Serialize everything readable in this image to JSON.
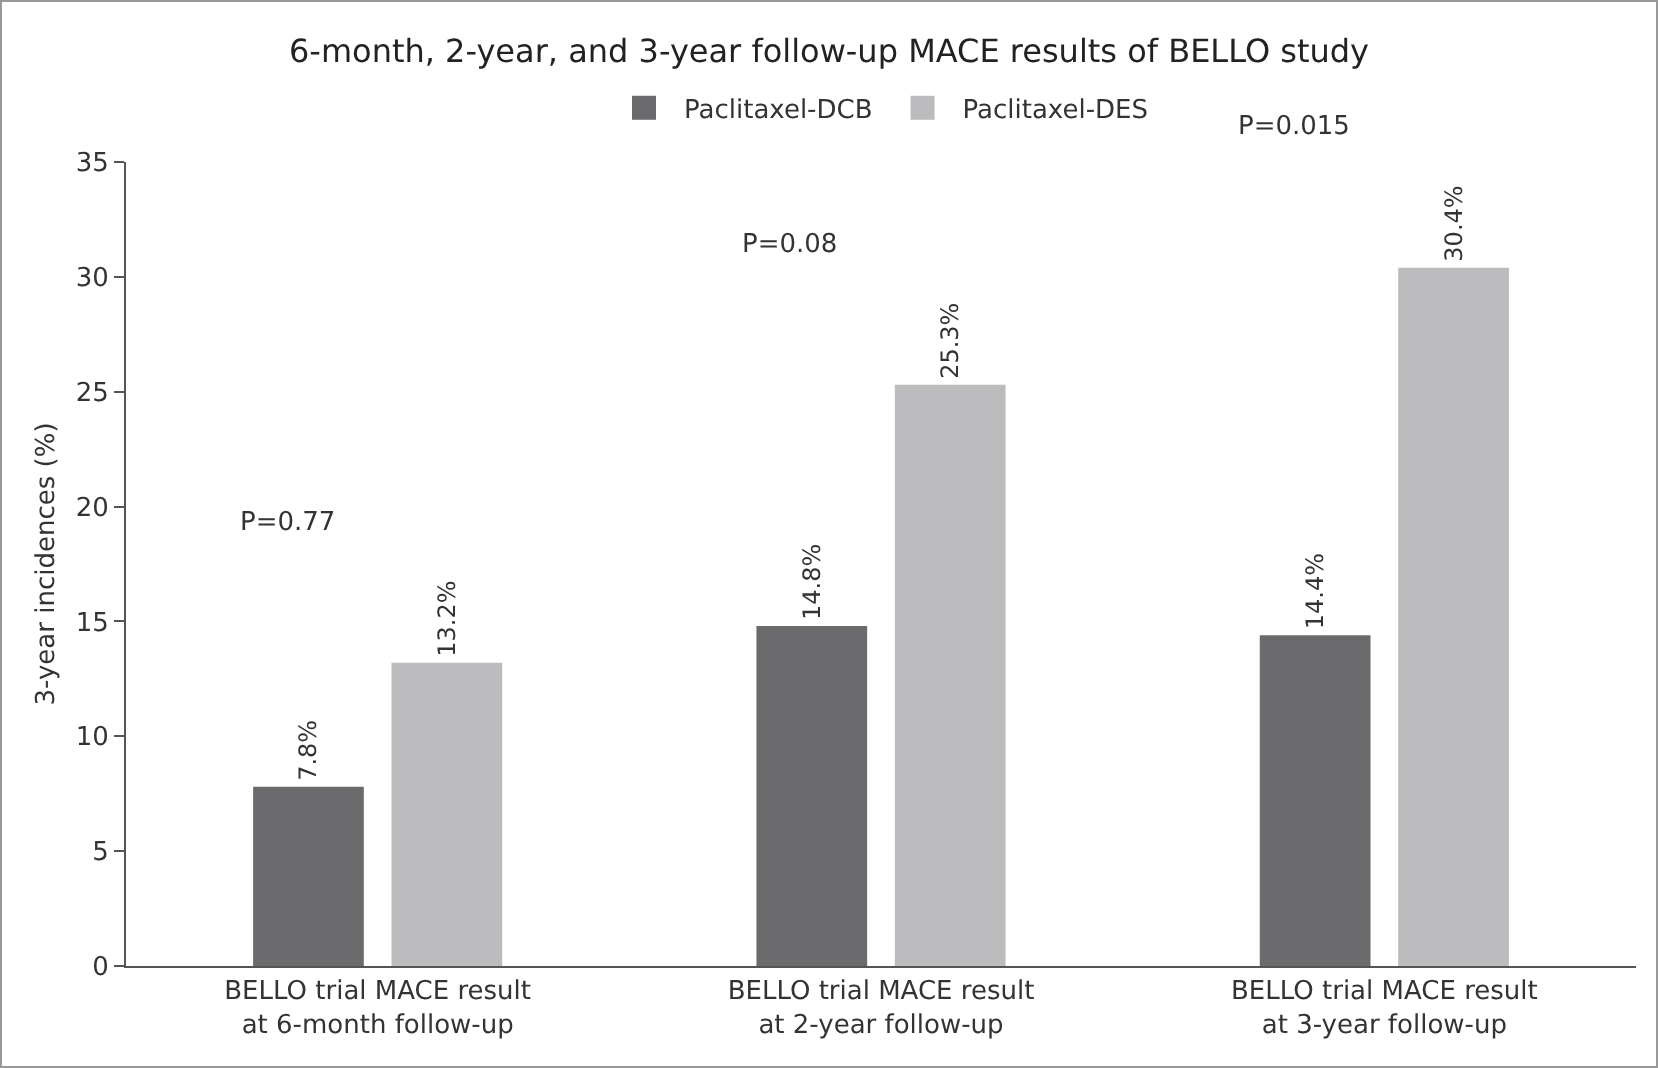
{
  "chart_data": {
    "type": "bar",
    "title": "6-month, 2-year, and 3-year follow-up MACE results of BELLO study",
    "ylabel": "3-year incidences (%)",
    "categories": [
      "BELLO trial MACE result\nat 6-month follow-up",
      "BELLO trial MACE result\nat 2-year follow-up",
      "BELLO trial MACE result\nat 3-year follow-up"
    ],
    "series": [
      {
        "name": "Paclitaxel-DCB",
        "color": "#6b6b6e",
        "values": [
          7.8,
          14.8,
          14.4
        ],
        "value_labels": [
          "7.8%",
          "14.8%",
          "14.4%"
        ]
      },
      {
        "name": "Paclitaxel-DES",
        "color": "#bcbcbe",
        "values": [
          13.2,
          25.3,
          30.4
        ],
        "value_labels": [
          "13.2%",
          "25.3%",
          "30.4%"
        ]
      }
    ],
    "annotations": [
      "P=0.77",
      "P=0.08",
      "P=0.015"
    ],
    "ylim": [
      0,
      35
    ],
    "yticks": [
      0,
      5,
      10,
      15,
      20,
      25,
      30,
      35
    ],
    "grid": false,
    "legend": "top"
  }
}
